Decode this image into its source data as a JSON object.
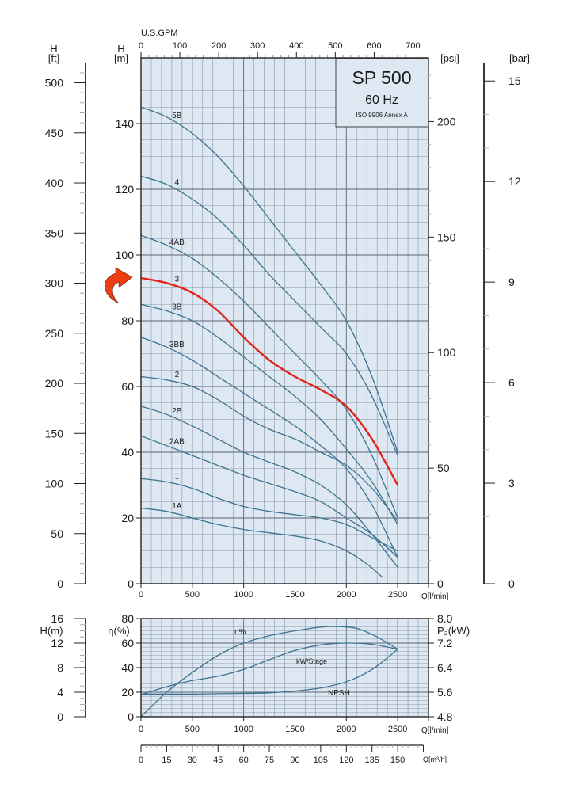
{
  "colors": {
    "plot_bg": "#dde8f3",
    "grid_major": "#5a6570",
    "grid_minor": "#8a97a4",
    "curve": "#3d7391",
    "highlight": "#e3221a",
    "arrow": "#ef3d12",
    "axis": "#222222"
  },
  "title_box": {
    "model": "SP 500",
    "frequency": "60 Hz",
    "standard": "ISO 9906 Annex A"
  },
  "chart_data": [
    {
      "type": "line",
      "name": "QH performance curves",
      "xlabel": "Q[l/min]",
      "ylabel": "H [m]",
      "xlim": [
        0,
        2800
      ],
      "ylim": [
        0,
        160
      ],
      "grid": true,
      "x_ticks": [
        "0",
        "500",
        "1000",
        "1500",
        "2000",
        "2500"
      ],
      "x_tick_values": [
        0,
        500,
        1000,
        1500,
        2000,
        2500
      ],
      "y_ticks": [
        "0",
        "20",
        "40",
        "60",
        "80",
        "100",
        "120",
        "140"
      ],
      "y_tick_values": [
        0,
        20,
        40,
        60,
        80,
        100,
        120,
        140
      ],
      "y_axis_label_top": "H",
      "y_axis_unit": "[m]",
      "secondary_axes": {
        "gpm": {
          "label": "U.S.GPM",
          "ticks": [
            "0",
            "100",
            "200",
            "300",
            "400",
            "500",
            "600",
            "700"
          ],
          "values": [
            0,
            100,
            200,
            300,
            400,
            500,
            600,
            700
          ],
          "lpm_per_unit": 3.785
        },
        "ft": {
          "label_top": "H",
          "unit": "[ft]",
          "ticks": [
            "0",
            "50",
            "100",
            "150",
            "200",
            "250",
            "300",
            "350",
            "400",
            "450",
            "500"
          ],
          "values": [
            0,
            50,
            100,
            150,
            200,
            250,
            300,
            350,
            400,
            450,
            500
          ],
          "m_per_unit": 0.3048
        },
        "psi": {
          "unit": "[psi]",
          "ticks": [
            "0",
            "50",
            "100",
            "150",
            "200"
          ],
          "values": [
            0,
            50,
            100,
            150,
            200
          ],
          "m_per_unit": 0.7031
        },
        "bar": {
          "unit": "[bar]",
          "ticks": [
            "0",
            "3",
            "6",
            "9",
            "12",
            "15"
          ],
          "values": [
            0,
            3,
            6,
            9,
            12,
            15
          ],
          "m_per_unit": 10.197
        }
      },
      "series": [
        {
          "name": "5B",
          "highlight": false,
          "x": [
            0,
            250,
            500,
            750,
            1000,
            1250,
            1500,
            1750,
            2000,
            2250,
            2500
          ],
          "y": [
            145,
            142,
            137,
            130,
            121,
            111,
            101,
            91,
            80,
            63,
            40
          ]
        },
        {
          "name": "4",
          "highlight": false,
          "x": [
            0,
            250,
            500,
            750,
            1000,
            1250,
            1500,
            1750,
            2000,
            2250,
            2500
          ],
          "y": [
            124,
            121.5,
            117,
            111,
            103,
            94,
            86,
            78,
            70,
            57,
            39
          ]
        },
        {
          "name": "4AB",
          "highlight": false,
          "x": [
            0,
            250,
            500,
            750,
            1000,
            1250,
            1500,
            1750,
            2000,
            2250,
            2500
          ],
          "y": [
            106,
            103,
            99,
            93,
            86,
            78,
            70,
            62,
            53,
            39,
            20
          ]
        },
        {
          "name": "3",
          "highlight": true,
          "x": [
            0,
            250,
            500,
            750,
            1000,
            1250,
            1500,
            1750,
            2000,
            2250,
            2500
          ],
          "y": [
            93,
            91.5,
            88.5,
            83,
            75,
            68,
            63,
            59,
            54,
            44,
            30
          ]
        },
        {
          "name": "3B",
          "highlight": false,
          "x": [
            0,
            250,
            500,
            750,
            1000,
            1250,
            1500,
            1750,
            2000,
            2250,
            2500
          ],
          "y": [
            85,
            83,
            80,
            75,
            69,
            63,
            57,
            50,
            41,
            31,
            18
          ]
        },
        {
          "name": "3BB",
          "highlight": false,
          "x": [
            0,
            250,
            500,
            750,
            1000,
            1250,
            1500,
            1750,
            2000,
            2250,
            2500
          ],
          "y": [
            75,
            72,
            68,
            63,
            58,
            53,
            48,
            42,
            35,
            24,
            8
          ]
        },
        {
          "name": "2",
          "highlight": false,
          "x": [
            0,
            250,
            500,
            750,
            1000,
            1250,
            1500,
            1750,
            2000,
            2250,
            2500
          ],
          "y": [
            63,
            62,
            60,
            56,
            51,
            47,
            44,
            40,
            36,
            29,
            19
          ]
        },
        {
          "name": "2B",
          "highlight": false,
          "x": [
            0,
            250,
            500,
            750,
            1000,
            1250,
            1500,
            1750,
            2000,
            2250,
            2500
          ],
          "y": [
            54,
            51.5,
            48,
            44,
            40,
            37,
            34,
            30,
            24,
            15,
            5
          ]
        },
        {
          "name": "2AB",
          "highlight": false,
          "x": [
            0,
            250,
            500,
            750,
            1000,
            1250,
            1500,
            1750,
            2000,
            2250,
            2500
          ],
          "y": [
            45,
            42,
            39,
            36,
            33,
            30.5,
            28,
            25,
            20,
            15,
            8
          ]
        },
        {
          "name": "1",
          "highlight": false,
          "x": [
            0,
            250,
            500,
            750,
            1000,
            1250,
            1500,
            1750,
            2000,
            2250,
            2500
          ],
          "y": [
            32,
            31,
            29,
            26,
            23.5,
            22,
            21,
            20,
            18,
            14,
            10
          ]
        },
        {
          "name": "1A",
          "highlight": false,
          "x": [
            0,
            250,
            500,
            750,
            1000,
            1250,
            1500,
            1750,
            2000,
            2200,
            2350
          ],
          "y": [
            23,
            22,
            20,
            18,
            16.5,
            15.5,
            14.5,
            13,
            10,
            6,
            2
          ]
        }
      ]
    },
    {
      "type": "line",
      "name": "Efficiency, power and NPSH curves",
      "xlabel": "Q[l/min]",
      "xlim": [
        0,
        2800
      ],
      "grid": true,
      "x_ticks": [
        "0",
        "500",
        "1000",
        "1500",
        "2000",
        "2500"
      ],
      "x_tick_values": [
        0,
        500,
        1000,
        1500,
        2000,
        2500
      ],
      "axes": {
        "h": {
          "label": "H(m)",
          "ticks": [
            "0",
            "4",
            "8",
            "12",
            "16"
          ],
          "values": [
            0,
            4,
            8,
            12,
            16
          ],
          "ylim": [
            0,
            16
          ]
        },
        "eta": {
          "label": "η(%)",
          "ticks": [
            "0",
            "20",
            "40",
            "60",
            "80"
          ],
          "values": [
            0,
            20,
            40,
            60,
            80
          ],
          "ylim": [
            0,
            80
          ]
        },
        "p2": {
          "label": "P₂(kW)",
          "ticks": [
            "4.8",
            "5.6",
            "6.4",
            "7.2",
            "8.0"
          ],
          "values": [
            4.8,
            5.6,
            6.4,
            7.2,
            8.0
          ],
          "ylim": [
            4.8,
            8.0
          ]
        }
      },
      "series": [
        {
          "name": "η%",
          "axis": "eta",
          "x": [
            0,
            250,
            500,
            750,
            1000,
            1250,
            1500,
            1750,
            1900,
            2100,
            2300,
            2500
          ],
          "y": [
            0,
            20,
            36,
            50,
            60,
            66,
            70,
            73,
            73.5,
            72,
            65,
            55
          ]
        },
        {
          "name": "kW/Stage",
          "axis": "p2",
          "x": [
            0,
            250,
            500,
            750,
            1000,
            1250,
            1500,
            1750,
            2000,
            2250,
            2500
          ],
          "y": [
            5.52,
            5.78,
            5.98,
            6.12,
            6.34,
            6.66,
            6.96,
            7.14,
            7.2,
            7.16,
            7.0
          ]
        },
        {
          "name": "NPSH",
          "axis": "h",
          "x": [
            0,
            250,
            500,
            750,
            1000,
            1250,
            1500,
            1750,
            2000,
            2250,
            2500
          ],
          "y": [
            3.7,
            3.7,
            3.7,
            3.75,
            3.8,
            3.9,
            4.2,
            4.7,
            5.7,
            7.7,
            11.0
          ]
        }
      ]
    },
    {
      "type": "axis",
      "name": "Flow in m3/h",
      "label": "Q[m³/h]",
      "ticks": [
        "0",
        "15",
        "30",
        "45",
        "60",
        "75",
        "90",
        "105",
        "120",
        "135",
        "150"
      ],
      "values": [
        0,
        15,
        30,
        45,
        60,
        75,
        90,
        105,
        120,
        135,
        150
      ],
      "lpm_per_unit": 16.667
    }
  ]
}
